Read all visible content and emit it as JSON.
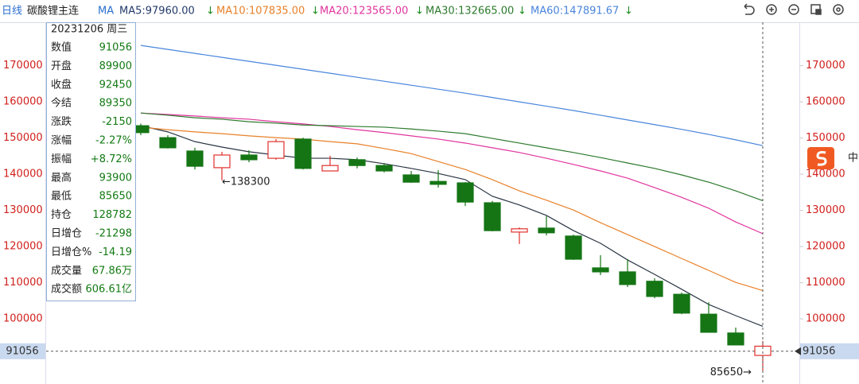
{
  "chart_data": {
    "type": "candlestick",
    "period": "日线",
    "title": "碳酸锂主连",
    "ma_label": "MA",
    "ylim": [
      82000,
      182000
    ],
    "yticks": [
      100000,
      110000,
      120000,
      130000,
      140000,
      150000,
      160000,
      170000
    ],
    "up_color": "#e0302c",
    "down_color": "#157515",
    "open": [
      153400,
      150100,
      146400,
      141800,
      145300,
      144400,
      149700,
      140900,
      144000,
      142400,
      139800,
      138000,
      137600,
      132100,
      124000,
      125100,
      122900,
      114100,
      113000,
      110400,
      106800,
      101300,
      96100,
      89900
    ],
    "high": [
      154000,
      150800,
      147300,
      146200,
      146600,
      149700,
      150100,
      145100,
      144600,
      143100,
      140900,
      141100,
      137800,
      132600,
      125300,
      128400,
      123300,
      117600,
      116500,
      111200,
      107300,
      104600,
      97600,
      93900
    ],
    "low": [
      150800,
      147100,
      141300,
      138300,
      143300,
      144000,
      141300,
      140900,
      141600,
      140500,
      137600,
      136300,
      131200,
      124200,
      120700,
      123100,
      116300,
      112100,
      108800,
      105700,
      101300,
      96300,
      92800,
      85650
    ],
    "close": [
      151500,
      147300,
      142200,
      145300,
      144000,
      149000,
      141600,
      142400,
      142400,
      140900,
      137800,
      137200,
      132300,
      124400,
      124900,
      123800,
      116500,
      113000,
      109500,
      106200,
      101600,
      96300,
      92800,
      92450
    ],
    "series": [
      {
        "name": "MA5:97960.00",
        "trend": "↓",
        "color": "#2a3644",
        "values": [
          153400,
          151700,
          149000,
          147500,
          146200,
          145300,
          144400,
          144400,
          144000,
          142900,
          141600,
          140200,
          138500,
          133900,
          131500,
          128600,
          124400,
          120900,
          116300,
          112300,
          108200,
          104000,
          100900,
          97960
        ]
      },
      {
        "name": "MA10:107835.00",
        "trend": "↓",
        "color": "#e8812a",
        "values": [
          153000,
          152300,
          151700,
          151200,
          150600,
          150100,
          149700,
          149000,
          148400,
          147100,
          145700,
          143500,
          141300,
          138500,
          135400,
          132800,
          130100,
          126600,
          123300,
          120000,
          116700,
          113400,
          110100,
          107835
        ]
      },
      {
        "name": "MA20:123565.00",
        "trend": "↓",
        "color": "#e0359e",
        "values": [
          156900,
          156500,
          156100,
          155600,
          155200,
          154500,
          153900,
          153200,
          152300,
          151500,
          150600,
          149700,
          148600,
          147300,
          146000,
          144400,
          142700,
          140900,
          138900,
          136300,
          133600,
          130600,
          126800,
          123565
        ]
      },
      {
        "name": "MA30:132665.00",
        "trend": "↓",
        "color": "#2e7a2e",
        "values": [
          156900,
          156300,
          155600,
          155200,
          154500,
          154100,
          153600,
          153400,
          153200,
          153000,
          152500,
          151900,
          151200,
          149900,
          148600,
          147300,
          146000,
          144600,
          143100,
          141600,
          139800,
          137800,
          135400,
          132665
        ]
      },
      {
        "name": "MA60:147891.67",
        "trend": "↓",
        "color": "#4a85dc",
        "values": [
          175600,
          174500,
          173400,
          172300,
          171200,
          170100,
          169000,
          167900,
          166800,
          165700,
          164600,
          163500,
          162400,
          161200,
          160000,
          158800,
          157600,
          156300,
          155000,
          153700,
          152400,
          151000,
          149500,
          147891.67
        ]
      }
    ],
    "last_price": {
      "value": 91056,
      "label": "91056"
    },
    "annotations": [
      {
        "value": 138300,
        "label": "←138300"
      },
      {
        "value": 85650,
        "label": "85650→"
      }
    ],
    "info": {
      "header": "20231206 周三",
      "rows": [
        [
          "数值",
          "91056"
        ],
        [
          "开盘",
          "89900"
        ],
        [
          "收盘",
          "92450"
        ],
        [
          "今结",
          "89350"
        ],
        [
          "涨跌",
          "-2150"
        ],
        [
          "涨幅",
          "-2.27%"
        ],
        [
          "振幅",
          "+8.72%"
        ],
        [
          "最高",
          "93900"
        ],
        [
          "最低",
          "85650"
        ],
        [
          "持仓",
          "128782"
        ],
        [
          "日增仓",
          "-21298"
        ],
        [
          "日增仓%",
          "-14.19"
        ],
        [
          "成交量",
          "67.86万"
        ],
        [
          "成交额",
          "606.61亿"
        ]
      ]
    },
    "ime": "中"
  }
}
